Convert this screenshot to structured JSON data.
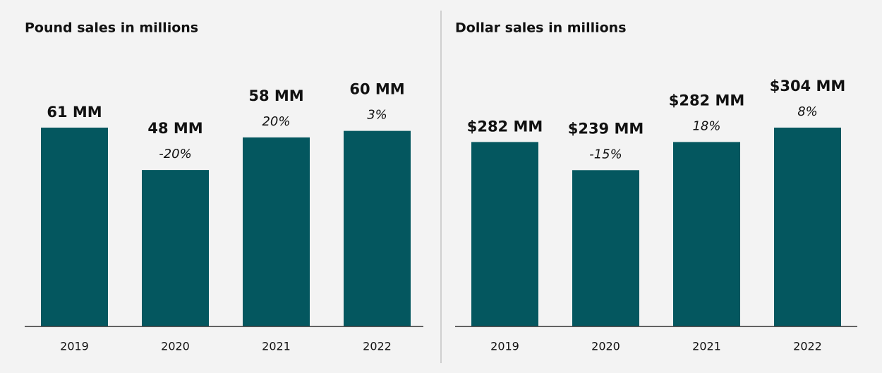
{
  "chart_data": [
    {
      "type": "bar",
      "title": "Pound sales in millions",
      "categories": [
        "2019",
        "2020",
        "2021",
        "2022"
      ],
      "values": [
        61,
        48,
        58,
        60
      ],
      "value_labels": [
        "61 MM",
        "48 MM",
        "58 MM",
        "60 MM"
      ],
      "change_labels": [
        null,
        "-20%",
        "20%",
        "3%"
      ],
      "color": "#04575f"
    },
    {
      "type": "bar",
      "title": "Dollar sales in millions",
      "categories": [
        "2019",
        "2020",
        "2021",
        "2022"
      ],
      "values": [
        282,
        239,
        282,
        304
      ],
      "value_labels": [
        "$282 MM",
        "$239 MM",
        "$282 MM",
        "$304 MM"
      ],
      "change_labels": [
        null,
        "-15%",
        "18%",
        "8%"
      ],
      "color": "#04575f"
    }
  ]
}
